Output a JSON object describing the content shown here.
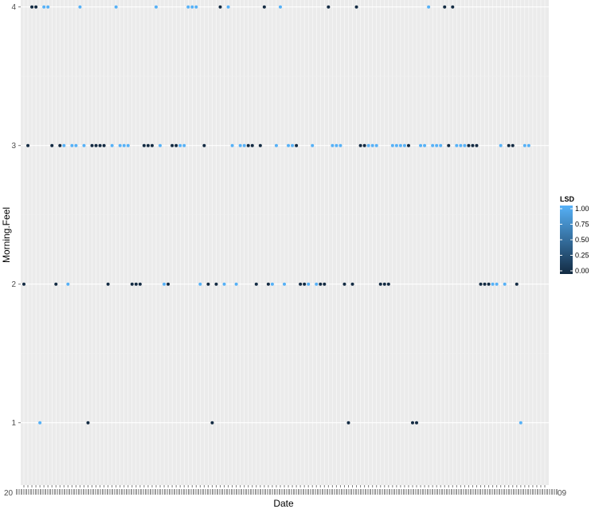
{
  "chart_data": {
    "type": "scatter",
    "title": "",
    "xlabel": "Date",
    "ylabel": "Morning.Feel",
    "x_axis_kind": "categorical dates",
    "category_count": 131,
    "x_tick_labels_legible": false,
    "first_x_tick_label": "20",
    "last_x_tick_label": "09",
    "y_ticks": [
      "1",
      "2",
      "3",
      "4"
    ],
    "ylim": [
      0.55,
      4.05
    ],
    "grid": true,
    "legend": {
      "title": "LSD",
      "type": "continuous colorbar",
      "placement": "right",
      "labels": [
        "1.00",
        "0.75",
        "0.50",
        "0.25",
        "0.00"
      ],
      "range": [
        0,
        1
      ],
      "color_low": "#132b43",
      "color_high": "#56b1f7"
    },
    "colors": {
      "panel": "#ebebeb",
      "grid_major": "#ffffff",
      "grid_minor": "#f2f2f2"
    },
    "points": [
      {
        "i": 0,
        "y": 2,
        "lsd": 0
      },
      {
        "i": 1,
        "y": 3,
        "lsd": 0
      },
      {
        "i": 2,
        "y": 4,
        "lsd": 0
      },
      {
        "i": 3,
        "y": 4,
        "lsd": 0
      },
      {
        "i": 4,
        "y": 1,
        "lsd": 1
      },
      {
        "i": 5,
        "y": 4,
        "lsd": 1
      },
      {
        "i": 6,
        "y": 4,
        "lsd": 1
      },
      {
        "i": 7,
        "y": 3,
        "lsd": 0
      },
      {
        "i": 8,
        "y": 2,
        "lsd": 0
      },
      {
        "i": 9,
        "y": 3,
        "lsd": 0
      },
      {
        "i": 10,
        "y": 3,
        "lsd": 1
      },
      {
        "i": 11,
        "y": 2,
        "lsd": 1
      },
      {
        "i": 12,
        "y": 3,
        "lsd": 1
      },
      {
        "i": 13,
        "y": 3,
        "lsd": 1
      },
      {
        "i": 14,
        "y": 4,
        "lsd": 1
      },
      {
        "i": 15,
        "y": 3,
        "lsd": 1
      },
      {
        "i": 16,
        "y": 1,
        "lsd": 0
      },
      {
        "i": 17,
        "y": 3,
        "lsd": 0
      },
      {
        "i": 18,
        "y": 3,
        "lsd": 0
      },
      {
        "i": 19,
        "y": 3,
        "lsd": 0
      },
      {
        "i": 20,
        "y": 3,
        "lsd": 0
      },
      {
        "i": 21,
        "y": 2,
        "lsd": 0
      },
      {
        "i": 22,
        "y": 3,
        "lsd": 1
      },
      {
        "i": 23,
        "y": 4,
        "lsd": 1
      },
      {
        "i": 24,
        "y": 3,
        "lsd": 1
      },
      {
        "i": 25,
        "y": 3,
        "lsd": 1
      },
      {
        "i": 26,
        "y": 3,
        "lsd": 1
      },
      {
        "i": 27,
        "y": 2,
        "lsd": 0
      },
      {
        "i": 28,
        "y": 2,
        "lsd": 0
      },
      {
        "i": 29,
        "y": 2,
        "lsd": 0
      },
      {
        "i": 30,
        "y": 3,
        "lsd": 0
      },
      {
        "i": 31,
        "y": 3,
        "lsd": 0
      },
      {
        "i": 32,
        "y": 3,
        "lsd": 0
      },
      {
        "i": 33,
        "y": 4,
        "lsd": 1
      },
      {
        "i": 34,
        "y": 3,
        "lsd": 1
      },
      {
        "i": 35,
        "y": 2,
        "lsd": 1
      },
      {
        "i": 36,
        "y": 2,
        "lsd": 0
      },
      {
        "i": 37,
        "y": 3,
        "lsd": 0
      },
      {
        "i": 38,
        "y": 3,
        "lsd": 0
      },
      {
        "i": 39,
        "y": 3,
        "lsd": 1
      },
      {
        "i": 40,
        "y": 3,
        "lsd": 1
      },
      {
        "i": 41,
        "y": 4,
        "lsd": 1
      },
      {
        "i": 42,
        "y": 4,
        "lsd": 1
      },
      {
        "i": 43,
        "y": 4,
        "lsd": 1
      },
      {
        "i": 44,
        "y": 2,
        "lsd": 1
      },
      {
        "i": 45,
        "y": 3,
        "lsd": 0
      },
      {
        "i": 46,
        "y": 2,
        "lsd": 0
      },
      {
        "i": 47,
        "y": 1,
        "lsd": 0
      },
      {
        "i": 48,
        "y": 2,
        "lsd": 0
      },
      {
        "i": 49,
        "y": 4,
        "lsd": 0
      },
      {
        "i": 50,
        "y": 2,
        "lsd": 1
      },
      {
        "i": 51,
        "y": 4,
        "lsd": 1
      },
      {
        "i": 52,
        "y": 3,
        "lsd": 1
      },
      {
        "i": 53,
        "y": 2,
        "lsd": 1
      },
      {
        "i": 54,
        "y": 3,
        "lsd": 1
      },
      {
        "i": 55,
        "y": 3,
        "lsd": 1
      },
      {
        "i": 56,
        "y": 3,
        "lsd": 0
      },
      {
        "i": 57,
        "y": 3,
        "lsd": 0
      },
      {
        "i": 58,
        "y": 2,
        "lsd": 0
      },
      {
        "i": 59,
        "y": 3,
        "lsd": 0
      },
      {
        "i": 60,
        "y": 4,
        "lsd": 0
      },
      {
        "i": 61,
        "y": 2,
        "lsd": 0
      },
      {
        "i": 62,
        "y": 2,
        "lsd": 1
      },
      {
        "i": 63,
        "y": 3,
        "lsd": 1
      },
      {
        "i": 64,
        "y": 4,
        "lsd": 1
      },
      {
        "i": 65,
        "y": 2,
        "lsd": 1
      },
      {
        "i": 66,
        "y": 3,
        "lsd": 1
      },
      {
        "i": 67,
        "y": 3,
        "lsd": 1
      },
      {
        "i": 68,
        "y": 3,
        "lsd": 0
      },
      {
        "i": 69,
        "y": 2,
        "lsd": 0
      },
      {
        "i": 70,
        "y": 2,
        "lsd": 0
      },
      {
        "i": 71,
        "y": 2,
        "lsd": 1
      },
      {
        "i": 72,
        "y": 3,
        "lsd": 1
      },
      {
        "i": 73,
        "y": 2,
        "lsd": 1
      },
      {
        "i": 74,
        "y": 2,
        "lsd": 0
      },
      {
        "i": 75,
        "y": 2,
        "lsd": 0
      },
      {
        "i": 76,
        "y": 4,
        "lsd": 0
      },
      {
        "i": 77,
        "y": 3,
        "lsd": 1
      },
      {
        "i": 78,
        "y": 3,
        "lsd": 1
      },
      {
        "i": 79,
        "y": 3,
        "lsd": 1
      },
      {
        "i": 80,
        "y": 2,
        "lsd": 0
      },
      {
        "i": 81,
        "y": 1,
        "lsd": 0
      },
      {
        "i": 82,
        "y": 2,
        "lsd": 0
      },
      {
        "i": 83,
        "y": 4,
        "lsd": 0
      },
      {
        "i": 84,
        "y": 3,
        "lsd": 0
      },
      {
        "i": 85,
        "y": 3,
        "lsd": 0
      },
      {
        "i": 86,
        "y": 3,
        "lsd": 1
      },
      {
        "i": 87,
        "y": 3,
        "lsd": 1
      },
      {
        "i": 88,
        "y": 3,
        "lsd": 1
      },
      {
        "i": 89,
        "y": 2,
        "lsd": 0
      },
      {
        "i": 90,
        "y": 2,
        "lsd": 0
      },
      {
        "i": 91,
        "y": 2,
        "lsd": 0
      },
      {
        "i": 92,
        "y": 3,
        "lsd": 1
      },
      {
        "i": 93,
        "y": 3,
        "lsd": 1
      },
      {
        "i": 94,
        "y": 3,
        "lsd": 1
      },
      {
        "i": 95,
        "y": 3,
        "lsd": 1
      },
      {
        "i": 96,
        "y": 3,
        "lsd": 0
      },
      {
        "i": 97,
        "y": 1,
        "lsd": 0
      },
      {
        "i": 98,
        "y": 1,
        "lsd": 0
      },
      {
        "i": 99,
        "y": 3,
        "lsd": 1
      },
      {
        "i": 100,
        "y": 3,
        "lsd": 1
      },
      {
        "i": 101,
        "y": 4,
        "lsd": 1
      },
      {
        "i": 102,
        "y": 3,
        "lsd": 1
      },
      {
        "i": 103,
        "y": 3,
        "lsd": 1
      },
      {
        "i": 104,
        "y": 3,
        "lsd": 1
      },
      {
        "i": 105,
        "y": 4,
        "lsd": 0
      },
      {
        "i": 106,
        "y": 3,
        "lsd": 0
      },
      {
        "i": 107,
        "y": 4,
        "lsd": 0
      },
      {
        "i": 108,
        "y": 3,
        "lsd": 1
      },
      {
        "i": 109,
        "y": 3,
        "lsd": 1
      },
      {
        "i": 110,
        "y": 3,
        "lsd": 1
      },
      {
        "i": 111,
        "y": 3,
        "lsd": 0
      },
      {
        "i": 112,
        "y": 3,
        "lsd": 0
      },
      {
        "i": 113,
        "y": 3,
        "lsd": 0
      },
      {
        "i": 114,
        "y": 2,
        "lsd": 0
      },
      {
        "i": 115,
        "y": 2,
        "lsd": 0
      },
      {
        "i": 116,
        "y": 2,
        "lsd": 0
      },
      {
        "i": 117,
        "y": 2,
        "lsd": 1
      },
      {
        "i": 118,
        "y": 2,
        "lsd": 1
      },
      {
        "i": 119,
        "y": 3,
        "lsd": 1
      },
      {
        "i": 120,
        "y": 2,
        "lsd": 1
      },
      {
        "i": 121,
        "y": 3,
        "lsd": 0
      },
      {
        "i": 122,
        "y": 3,
        "lsd": 0
      },
      {
        "i": 123,
        "y": 2,
        "lsd": 0
      },
      {
        "i": 124,
        "y": 1,
        "lsd": 1
      },
      {
        "i": 125,
        "y": 3,
        "lsd": 1
      },
      {
        "i": 126,
        "y": 3,
        "lsd": 1
      }
    ]
  }
}
